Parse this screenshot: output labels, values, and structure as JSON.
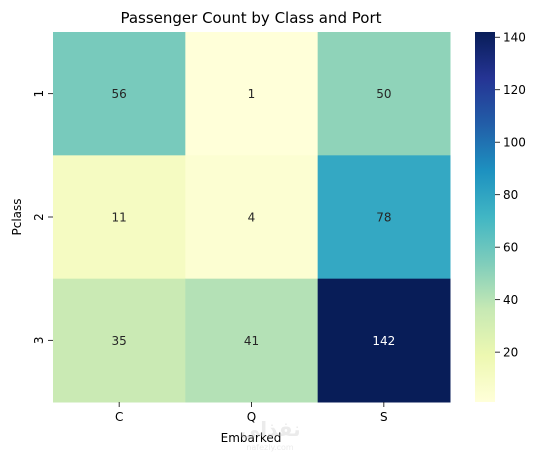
{
  "chart_data": {
    "type": "heatmap",
    "title": "Passenger Count by Class and Port",
    "xlabel": "Embarked",
    "ylabel": "Pclass",
    "x_categories": [
      "C",
      "Q",
      "S"
    ],
    "y_categories": [
      "1",
      "2",
      "3"
    ],
    "values": [
      [
        56,
        1,
        50
      ],
      [
        11,
        4,
        78
      ],
      [
        35,
        41,
        142
      ]
    ],
    "colormap": "YlGnBu",
    "colorbar": {
      "range": [
        1,
        142
      ],
      "ticks": [
        20,
        40,
        60,
        80,
        100,
        120,
        140
      ]
    },
    "annotations": true,
    "grid": false
  },
  "watermark": {
    "text": "نفذلي",
    "subtext": "nafezly.com"
  }
}
